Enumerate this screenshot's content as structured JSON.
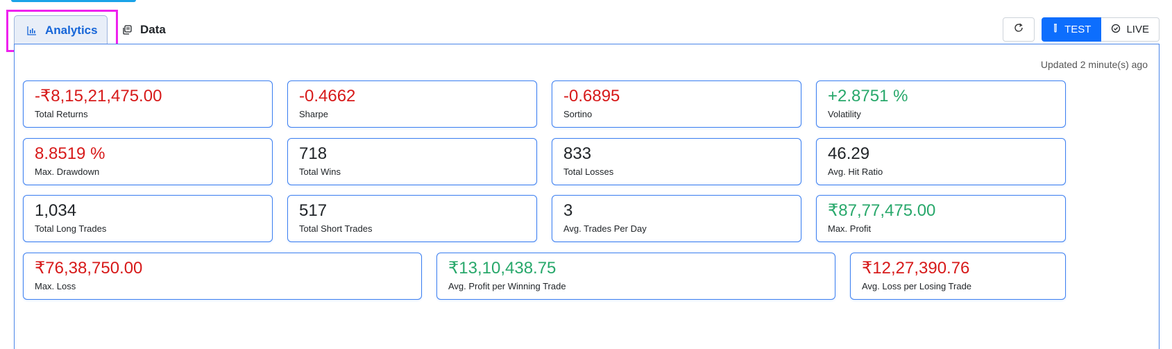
{
  "tabs": {
    "analytics_label": "Analytics",
    "data_label": "Data"
  },
  "toolbar": {
    "test_label": "TEST",
    "live_label": "LIVE"
  },
  "updated_text": "Updated 2 minute(s) ago",
  "metrics": [
    {
      "value": "-₹8,15,21,475.00",
      "label": "Total Returns",
      "tone": "neg"
    },
    {
      "value": "-0.4662",
      "label": "Sharpe",
      "tone": "neg"
    },
    {
      "value": "-0.6895",
      "label": "Sortino",
      "tone": "neg"
    },
    {
      "value": "+2.8751 %",
      "label": "Volatility",
      "tone": "pos"
    },
    {
      "value": "8.8519 %",
      "label": "Max. Drawdown",
      "tone": "neg"
    },
    {
      "value": "718",
      "label": "Total Wins",
      "tone": "neu"
    },
    {
      "value": "833",
      "label": "Total Losses",
      "tone": "neu"
    },
    {
      "value": "46.29",
      "label": "Avg. Hit Ratio",
      "tone": "neu"
    },
    {
      "value": "1,034",
      "label": "Total Long Trades",
      "tone": "neu"
    },
    {
      "value": "517",
      "label": "Total Short Trades",
      "tone": "neu"
    },
    {
      "value": "3",
      "label": "Avg. Trades Per Day",
      "tone": "neu"
    },
    {
      "value": "₹87,77,475.00",
      "label": "Max. Profit",
      "tone": "pos"
    },
    {
      "value": "₹76,38,750.00",
      "label": "Max. Loss",
      "tone": "neg"
    },
    {
      "value": "₹13,10,438.75",
      "label": "Avg. Profit per Winning Trade",
      "tone": "pos"
    },
    {
      "value": "₹12,27,390.76",
      "label": "Avg. Loss per Losing Trade",
      "tone": "neg"
    }
  ],
  "colors": {
    "accent": "#0d6efd",
    "negative": "#d71a1a",
    "positive": "#28a86b",
    "card_border": "#3d7ff0",
    "highlight": "#ee22ee"
  }
}
